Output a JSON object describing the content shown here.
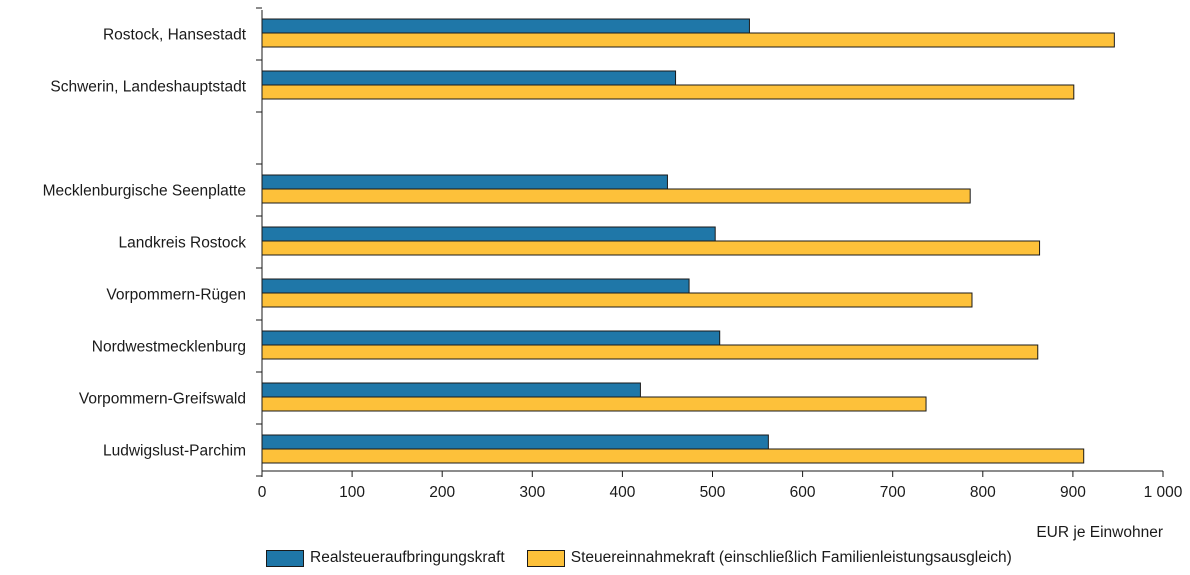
{
  "chart_data": {
    "type": "bar",
    "orientation": "horizontal",
    "categories": [
      "Rostock, Hansestadt",
      "Schwerin, Landeshauptstadt",
      "",
      "Mecklenburgische Seenplatte",
      "Landkreis Rostock",
      "Vorpommern-Rügen",
      "Nordwestmecklenburg",
      "Vorpommern-Greifswald",
      "Ludwigslust-Parchim"
    ],
    "series": [
      {
        "name": "Realsteueraufbringungskraft",
        "color": "#1f77a8",
        "values": [
          541,
          459,
          null,
          450,
          503,
          474,
          508,
          420,
          562
        ]
      },
      {
        "name": "Steuereinnahmekraft (einschließlich Familienleistungsausgleich)",
        "color": "#fdc13a",
        "values": [
          946,
          901,
          null,
          786,
          863,
          788,
          861,
          737,
          912
        ]
      }
    ],
    "xlim": [
      0,
      1000
    ],
    "xticks": [
      0,
      100,
      200,
      300,
      400,
      500,
      600,
      700,
      800,
      900,
      1000
    ],
    "xtick_labels": [
      "0",
      "100",
      "200",
      "300",
      "400",
      "500",
      "600",
      "700",
      "800",
      "900",
      "1 000"
    ],
    "xlabel": "EUR je Einwohner",
    "grid": false,
    "legend_position": "bottom"
  }
}
